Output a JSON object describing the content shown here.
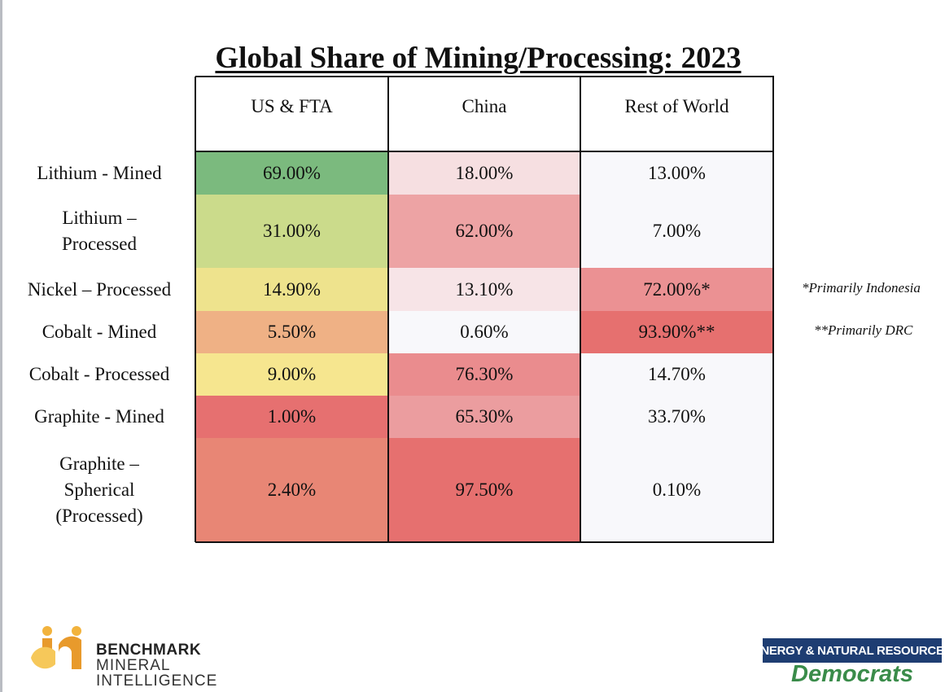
{
  "chart_data": {
    "type": "table",
    "title": "Global Share of Mining/Processing: 2023",
    "columns": [
      "US & FTA",
      "China",
      "Rest of World"
    ],
    "rows": [
      {
        "label": "Lithium - Mined",
        "values": [
          "69.00%",
          "18.00%",
          "13.00%"
        ],
        "colors": [
          "#7bba7e",
          "#f6dfe1",
          "#f8f8fb"
        ]
      },
      {
        "label": "Lithium – Processed",
        "values": [
          "31.00%",
          "62.00%",
          "7.00%"
        ],
        "colors": [
          "#cbdb8b",
          "#eda3a4",
          "#f8f8fb"
        ]
      },
      {
        "label": "Nickel – Processed",
        "values": [
          "14.90%",
          "13.10%",
          "72.00%*"
        ],
        "colors": [
          "#eee38d",
          "#f7e4e7",
          "#eb9193"
        ]
      },
      {
        "label": "Cobalt - Mined",
        "values": [
          "5.50%",
          "0.60%",
          "93.90%**"
        ],
        "colors": [
          "#efb185",
          "#f8f8fb",
          "#e6706f"
        ]
      },
      {
        "label": "Cobalt - Processed",
        "values": [
          "9.00%",
          "76.30%",
          "14.70%"
        ],
        "colors": [
          "#f6e68f",
          "#ea8c8e",
          "#f8f8fb"
        ]
      },
      {
        "label": "Graphite - Mined",
        "values": [
          "1.00%",
          "65.30%",
          "33.70%"
        ],
        "colors": [
          "#e67070",
          "#eb9d9f",
          "#f8f8fb"
        ]
      },
      {
        "label": "Graphite – Spherical (Processed)",
        "values": [
          "2.40%",
          "97.50%",
          "0.10%"
        ],
        "colors": [
          "#e88675",
          "#e6706f",
          "#f8f8fb"
        ]
      }
    ],
    "notes": [
      "*Primarily Indonesia",
      "**Primarily DRC"
    ]
  },
  "logos": {
    "benchmark_line1": "BENCHMARK",
    "benchmark_line2": "MINERAL",
    "benchmark_line3": "INTELLIGENCE",
    "enr_line1": "ENERGY & NATURAL RESOURCES",
    "enr_line2": "Democrats",
    "benchmark_colors": [
      "#f2b33d",
      "#e89a2c",
      "#f6c85a"
    ],
    "enr_colors": [
      "#1e3d72",
      "#3a8c4a"
    ]
  }
}
